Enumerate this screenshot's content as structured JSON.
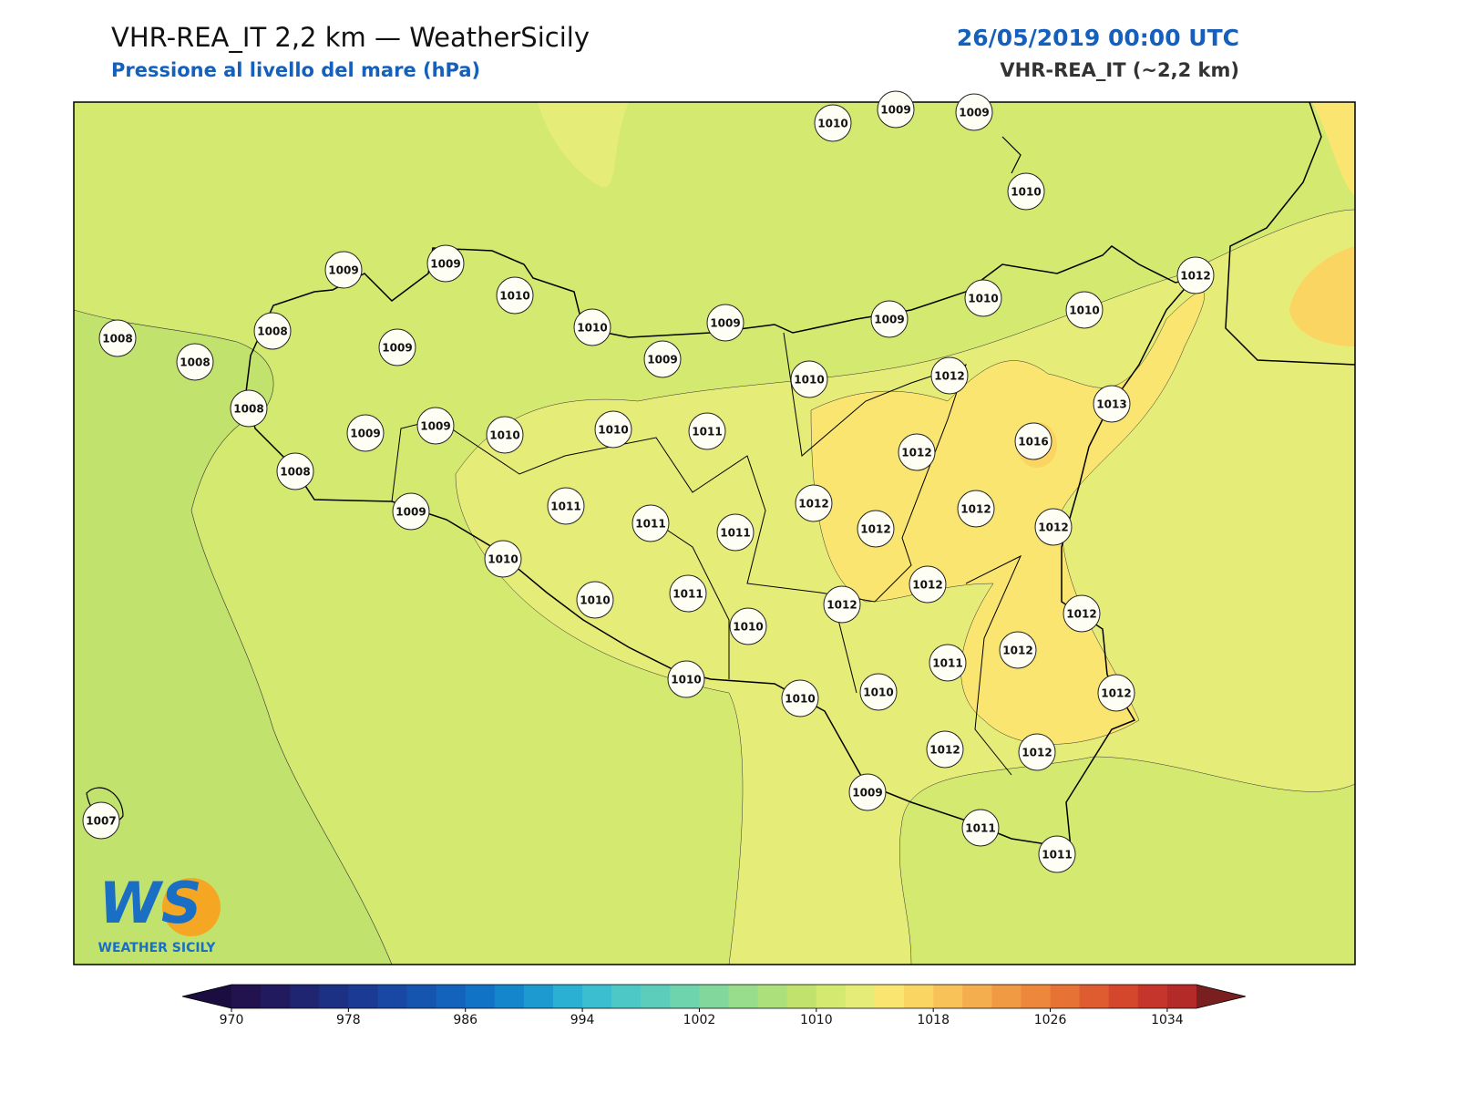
{
  "header": {
    "title": "VHR-REA_IT 2,2 km — WeatherSicily",
    "subtitle": "Pressione al livello del mare (hPa)",
    "datetime": "26/05/2019 00:00 UTC",
    "model": "VHR-REA_IT (~2,2 km)"
  },
  "logo": {
    "mark": "WS",
    "text": "WEATHER SICILY"
  },
  "stations": [
    1010,
    1009,
    1009,
    1010,
    1009,
    1009,
    1010,
    1012,
    1010,
    1010,
    1008,
    1008,
    1010,
    1009,
    1009,
    1008,
    1009,
    1009,
    1010,
    1012,
    1013,
    1008,
    1009,
    1009,
    1010,
    1010,
    1011,
    1012,
    1016,
    1008,
    1011,
    1012,
    1012,
    1011,
    1011,
    1012,
    1012,
    1009,
    1010,
    1012,
    1010,
    1011,
    1012,
    1012,
    1010,
    1011,
    1012,
    1010,
    1010,
    1010,
    1012,
    1012,
    1012,
    1009,
    1011,
    1011,
    1007
  ],
  "colorbar": {
    "lim": [
      970,
      1036
    ],
    "ticks": [
      970,
      978,
      986,
      994,
      1002,
      1010,
      1018,
      1026,
      1034
    ],
    "under": "#1b0d3f",
    "over": "#7a1f1f",
    "colors": [
      "#22124e",
      "#211a5e",
      "#1f2570",
      "#1c3184",
      "#1a3a94",
      "#1848a4",
      "#1555b0",
      "#1363bc",
      "#1173c6",
      "#1487cc",
      "#1d9acf",
      "#2ab0d2",
      "#3bbfd0",
      "#4ec8c6",
      "#5ccdbb",
      "#6ed4ad",
      "#82d89c",
      "#98dd8c",
      "#ace07b",
      "#c1e36e",
      "#d3e970",
      "#e6ec78",
      "#f9e570",
      "#fbd562",
      "#f8c258",
      "#f5ae4e",
      "#f09a43",
      "#ec873b",
      "#e77235",
      "#de5c30",
      "#d4472d",
      "#c5352b",
      "#b32a29"
    ]
  }
}
